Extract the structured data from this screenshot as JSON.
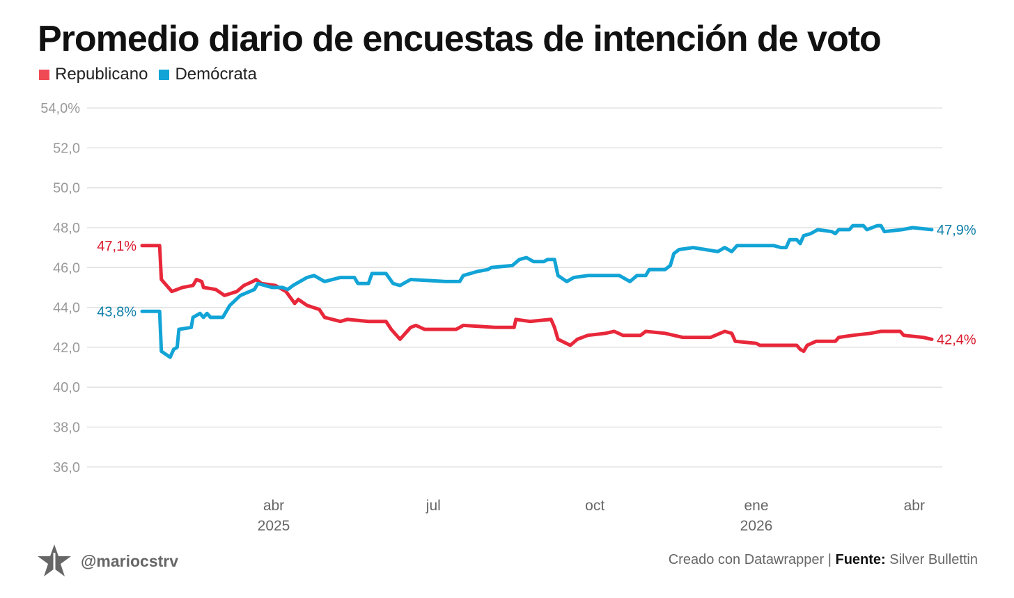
{
  "chart_data": {
    "type": "line",
    "title": "Promedio diario de encuestas de intención de voto",
    "x_unit": "days since 2025-01-01",
    "ylim": [
      36,
      54
    ],
    "y_ticks": [
      {
        "value": 54,
        "label": "54,0%"
      },
      {
        "value": 52,
        "label": "52,0"
      },
      {
        "value": 50,
        "label": "50,0"
      },
      {
        "value": 48,
        "label": "48,0"
      },
      {
        "value": 46,
        "label": "46,0"
      },
      {
        "value": 44,
        "label": "44,0"
      },
      {
        "value": 42,
        "label": "42,0"
      },
      {
        "value": 40,
        "label": "40,0"
      },
      {
        "value": 38,
        "label": "38,0"
      },
      {
        "value": 36,
        "label": "36,0"
      }
    ],
    "x_ticks": [
      {
        "day": 90,
        "label": "abr",
        "year": "2025"
      },
      {
        "day": 181,
        "label": "jul",
        "year": ""
      },
      {
        "day": 273,
        "label": "oct",
        "year": ""
      },
      {
        "day": 365,
        "label": "ene",
        "year": "2026"
      },
      {
        "day": 455,
        "label": "abr",
        "year": ""
      }
    ],
    "grid": true,
    "legend_position": "top-left",
    "series": [
      {
        "name": "Republicano",
        "color": "#e8283a",
        "label_color": "#d9182b",
        "start_label": "47,1%",
        "end_label": "42,4%",
        "points": [
          [
            15,
            47.1
          ],
          [
            25,
            47.1
          ],
          [
            26,
            45.4
          ],
          [
            32,
            44.8
          ],
          [
            38,
            45.0
          ],
          [
            44,
            45.1
          ],
          [
            46,
            45.4
          ],
          [
            49,
            45.3
          ],
          [
            50,
            45.0
          ],
          [
            57,
            44.9
          ],
          [
            62,
            44.6
          ],
          [
            69,
            44.8
          ],
          [
            73,
            45.1
          ],
          [
            78,
            45.3
          ],
          [
            80,
            45.4
          ],
          [
            83,
            45.2
          ],
          [
            91,
            45.1
          ],
          [
            97,
            44.8
          ],
          [
            102,
            44.2
          ],
          [
            104,
            44.4
          ],
          [
            109,
            44.1
          ],
          [
            116,
            43.9
          ],
          [
            119,
            43.5
          ],
          [
            128,
            43.3
          ],
          [
            132,
            43.4
          ],
          [
            144,
            43.3
          ],
          [
            154,
            43.3
          ],
          [
            157,
            42.9
          ],
          [
            162,
            42.4
          ],
          [
            168,
            43.0
          ],
          [
            171,
            43.1
          ],
          [
            176,
            42.9
          ],
          [
            194,
            42.9
          ],
          [
            198,
            43.1
          ],
          [
            216,
            43.0
          ],
          [
            227,
            43.0
          ],
          [
            228,
            43.4
          ],
          [
            236,
            43.3
          ],
          [
            248,
            43.4
          ],
          [
            250,
            43.0
          ],
          [
            252,
            42.4
          ],
          [
            259,
            42.1
          ],
          [
            263,
            42.4
          ],
          [
            269,
            42.6
          ],
          [
            279,
            42.7
          ],
          [
            284,
            42.8
          ],
          [
            289,
            42.6
          ],
          [
            299,
            42.6
          ],
          [
            302,
            42.8
          ],
          [
            313,
            42.7
          ],
          [
            323,
            42.5
          ],
          [
            331,
            42.5
          ],
          [
            339,
            42.5
          ],
          [
            347,
            42.8
          ],
          [
            351,
            42.7
          ],
          [
            353,
            42.3
          ],
          [
            365,
            42.2
          ],
          [
            367,
            42.1
          ],
          [
            388,
            42.1
          ],
          [
            390,
            41.9
          ],
          [
            392,
            41.8
          ],
          [
            394,
            42.1
          ],
          [
            399,
            42.3
          ],
          [
            410,
            42.3
          ],
          [
            412,
            42.5
          ],
          [
            420,
            42.6
          ],
          [
            430,
            42.7
          ],
          [
            436,
            42.8
          ],
          [
            447,
            42.8
          ],
          [
            449,
            42.6
          ],
          [
            460,
            42.5
          ],
          [
            465,
            42.4
          ]
        ]
      },
      {
        "name": "Demócrata",
        "color": "#12a4d6",
        "label_color": "#0d7fa8",
        "start_label": "43,8%",
        "end_label": "47,9%",
        "points": [
          [
            15,
            43.8
          ],
          [
            25,
            43.8
          ],
          [
            26,
            41.8
          ],
          [
            31,
            41.5
          ],
          [
            33,
            41.9
          ],
          [
            35,
            42.0
          ],
          [
            36,
            42.9
          ],
          [
            43,
            43.0
          ],
          [
            44,
            43.5
          ],
          [
            48,
            43.7
          ],
          [
            50,
            43.5
          ],
          [
            52,
            43.7
          ],
          [
            54,
            43.5
          ],
          [
            61,
            43.5
          ],
          [
            65,
            44.1
          ],
          [
            71,
            44.6
          ],
          [
            79,
            44.9
          ],
          [
            81,
            45.2
          ],
          [
            89,
            45.0
          ],
          [
            95,
            45.0
          ],
          [
            98,
            44.9
          ],
          [
            101,
            45.1
          ],
          [
            109,
            45.5
          ],
          [
            113,
            45.6
          ],
          [
            119,
            45.3
          ],
          [
            128,
            45.5
          ],
          [
            136,
            45.5
          ],
          [
            138,
            45.2
          ],
          [
            144,
            45.2
          ],
          [
            146,
            45.7
          ],
          [
            154,
            45.7
          ],
          [
            158,
            45.2
          ],
          [
            162,
            45.1
          ],
          [
            168,
            45.4
          ],
          [
            188,
            45.3
          ],
          [
            196,
            45.3
          ],
          [
            198,
            45.6
          ],
          [
            206,
            45.8
          ],
          [
            212,
            45.9
          ],
          [
            214,
            46.0
          ],
          [
            226,
            46.1
          ],
          [
            230,
            46.4
          ],
          [
            234,
            46.5
          ],
          [
            238,
            46.3
          ],
          [
            244,
            46.3
          ],
          [
            246,
            46.4
          ],
          [
            250,
            46.4
          ],
          [
            252,
            45.6
          ],
          [
            257,
            45.3
          ],
          [
            261,
            45.5
          ],
          [
            269,
            45.6
          ],
          [
            287,
            45.6
          ],
          [
            293,
            45.3
          ],
          [
            297,
            45.6
          ],
          [
            302,
            45.6
          ],
          [
            304,
            45.9
          ],
          [
            313,
            45.9
          ],
          [
            316,
            46.1
          ],
          [
            318,
            46.7
          ],
          [
            321,
            46.9
          ],
          [
            329,
            47.0
          ],
          [
            343,
            46.8
          ],
          [
            347,
            47.0
          ],
          [
            351,
            46.8
          ],
          [
            354,
            47.1
          ],
          [
            375,
            47.1
          ],
          [
            379,
            47.0
          ],
          [
            382,
            47.0
          ],
          [
            384,
            47.4
          ],
          [
            388,
            47.4
          ],
          [
            390,
            47.2
          ],
          [
            392,
            47.6
          ],
          [
            396,
            47.7
          ],
          [
            400,
            47.9
          ],
          [
            408,
            47.8
          ],
          [
            410,
            47.7
          ],
          [
            412,
            47.9
          ],
          [
            418,
            47.9
          ],
          [
            420,
            48.1
          ],
          [
            426,
            48.1
          ],
          [
            428,
            47.9
          ],
          [
            434,
            48.1
          ],
          [
            436,
            48.1
          ],
          [
            438,
            47.8
          ],
          [
            448,
            47.9
          ],
          [
            454,
            48.0
          ],
          [
            465,
            47.9
          ]
        ]
      }
    ]
  },
  "legend": {
    "items": [
      {
        "label": "Republicano",
        "color": "#f04a55"
      },
      {
        "label": "Demócrata",
        "color": "#12a4d6"
      }
    ]
  },
  "footer": {
    "handle": "@mariocstrv",
    "credit": "Creado con Datawrapper | ",
    "source_label": "Fuente:",
    "source": " Silver Bullettin"
  }
}
